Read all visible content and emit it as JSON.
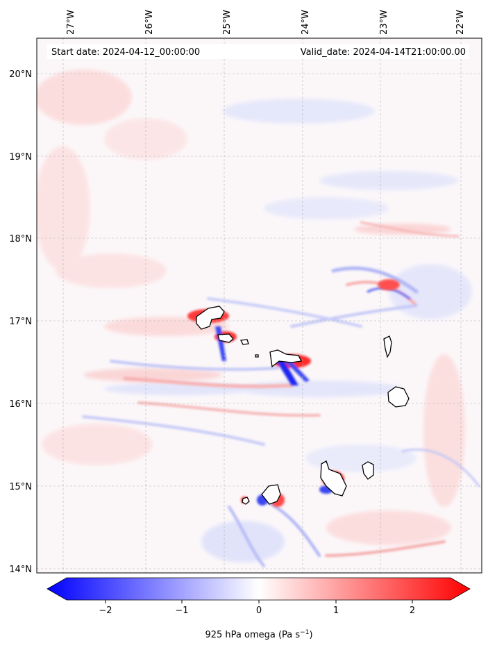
{
  "map": {
    "start_date_text": "Start date: 2024-04-12_00:00:00",
    "valid_date_text": "Valid_date: 2024-04-14T21:00:00.00",
    "lon_ticks": [
      "27°W",
      "26°W",
      "25°W",
      "24°W",
      "23°W",
      "22°W"
    ],
    "lat_ticks": [
      "20°N",
      "19°N",
      "18°N",
      "17°N",
      "16°N",
      "15°N",
      "14°N"
    ],
    "lon_range": [
      -27.3,
      -21.7
    ],
    "lat_range": [
      13.97,
      20.45
    ],
    "projection": "lat-lon",
    "gridlines": true
  },
  "colorbar": {
    "ticks": [
      "−2",
      "−1",
      "0",
      "1",
      "2"
    ],
    "tick_values": [
      -2,
      -1,
      0,
      1,
      2
    ],
    "range": [
      -2.5,
      2.5
    ],
    "extend": "both",
    "label": "925 hPa omega (Pa s",
    "label_exponent": "−1",
    "label_close": ")",
    "colormap": "bwr",
    "low_color": "#0000ff",
    "mid_color": "#ffffff",
    "high_color": "#ff0000"
  },
  "islands": [
    {
      "name": "santo-antao",
      "lon": -24.95,
      "lat": 17.05
    },
    {
      "name": "sao-vicente",
      "lon": -24.97,
      "lat": 16.83
    },
    {
      "name": "santa-luzia",
      "lon": -24.73,
      "lat": 16.76
    },
    {
      "name": "sao-nicolau",
      "lon": -24.25,
      "lat": 16.6
    },
    {
      "name": "sal",
      "lon": -22.92,
      "lat": 16.72
    },
    {
      "name": "boa-vista",
      "lon": -22.82,
      "lat": 16.1
    },
    {
      "name": "maio",
      "lon": -23.17,
      "lat": 15.2
    },
    {
      "name": "santiago",
      "lon": -23.63,
      "lat": 15.1
    },
    {
      "name": "fogo",
      "lon": -24.4,
      "lat": 14.92
    },
    {
      "name": "brava",
      "lon": -24.7,
      "lat": 14.85
    }
  ]
}
